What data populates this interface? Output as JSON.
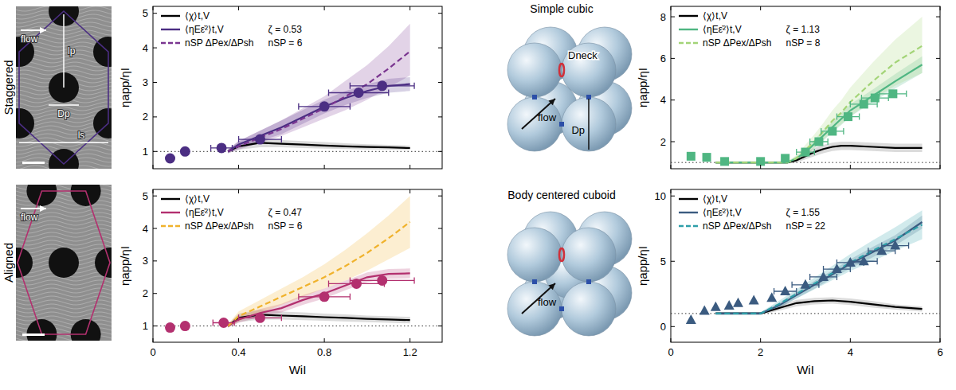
{
  "images": [
    {
      "title": "Staggered",
      "labels": [
        "flow",
        "lp",
        "Dp",
        "ls"
      ]
    },
    {
      "title": "Aligned",
      "labels": [
        "flow"
      ]
    },
    {
      "title": "Simple cubic",
      "labels": [
        "Dneck",
        "flow",
        "Dp"
      ]
    },
    {
      "title": "Body centered cuboid",
      "labels": [
        "flow"
      ]
    }
  ],
  "chart_data": [
    {
      "type": "line",
      "ylabel": "ηapp/ηI",
      "xlim": [
        0,
        1.35
      ],
      "ylim": [
        0.5,
        5.2
      ],
      "xticks": [
        0,
        0.4,
        0.8,
        1.2
      ],
      "yticks": [
        1,
        2,
        3,
        4,
        5
      ],
      "tick_labels": "y",
      "legend": "upper left",
      "hline": 1,
      "annotations": [
        "ζ = 0.53",
        "nSP = 6"
      ],
      "series": [
        {
          "name": "⟨χ⟩t,V",
          "type": "line",
          "color": "#000000",
          "line_style": "solid",
          "x": [
            0.35,
            0.4,
            0.5,
            0.6,
            0.7,
            0.8,
            0.9,
            1.0,
            1.1,
            1.2
          ],
          "values": [
            1.0,
            1.15,
            1.25,
            1.22,
            1.2,
            1.17,
            1.15,
            1.13,
            1.12,
            1.1
          ],
          "lower": [
            0.95,
            1.05,
            1.12,
            1.12,
            1.1,
            1.08,
            1.07,
            1.06,
            1.05,
            1.04
          ],
          "upper": [
            1.05,
            1.25,
            1.38,
            1.33,
            1.3,
            1.27,
            1.24,
            1.21,
            1.19,
            1.17
          ]
        },
        {
          "name": "⟨ηEε̇²⟩t,V",
          "type": "line",
          "color": "#4b2e83",
          "line_style": "solid",
          "x": [
            0.35,
            0.4,
            0.5,
            0.6,
            0.7,
            0.8,
            0.9,
            1.0,
            1.1,
            1.2
          ],
          "values": [
            1.0,
            1.2,
            1.45,
            1.7,
            2.0,
            2.3,
            2.55,
            2.75,
            2.9,
            2.95
          ],
          "lower": [
            0.95,
            1.1,
            1.3,
            1.5,
            1.8,
            2.1,
            2.35,
            2.55,
            2.7,
            2.75
          ],
          "upper": [
            1.05,
            1.3,
            1.6,
            1.9,
            2.2,
            2.5,
            2.75,
            2.95,
            3.1,
            3.15
          ]
        },
        {
          "name": "nSP ΔPex/ΔPsh",
          "type": "line",
          "color": "#7a3590",
          "line_style": "dashed",
          "x": [
            0.35,
            0.4,
            0.5,
            0.6,
            0.7,
            0.8,
            0.9,
            1.0,
            1.1,
            1.2
          ],
          "values": [
            1.0,
            1.15,
            1.4,
            1.65,
            1.95,
            2.25,
            2.6,
            2.95,
            3.4,
            3.9
          ],
          "lower": [
            0.95,
            1.05,
            1.25,
            1.45,
            1.7,
            1.95,
            2.2,
            2.5,
            2.85,
            3.2
          ],
          "upper": [
            1.05,
            1.3,
            1.6,
            1.9,
            2.25,
            2.6,
            3.05,
            3.5,
            4.05,
            4.7
          ]
        },
        {
          "type": "scatter",
          "marker": "circle",
          "color": "#4b2e83",
          "x": [
            0.08,
            0.15,
            0.32,
            0.5,
            0.8,
            0.96,
            1.07
          ],
          "values": [
            0.8,
            1.0,
            1.1,
            1.35,
            2.3,
            2.7,
            2.9
          ],
          "x_err": [
            0,
            0,
            0.05,
            0.1,
            0.12,
            0.14,
            0.15
          ]
        }
      ]
    },
    {
      "type": "line",
      "ylabel": "ηapp/ηI",
      "xlabel": "WiI",
      "xlim": [
        0,
        1.35
      ],
      "ylim": [
        0.5,
        5.2
      ],
      "xticks": [
        0,
        0.4,
        0.8,
        1.2
      ],
      "yticks": [
        1,
        2,
        3,
        4,
        5
      ],
      "tick_labels": true,
      "legend": "upper left",
      "hline": 1,
      "annotations": [
        "ζ = 0.47",
        "nSP = 6"
      ],
      "series": [
        {
          "name": "⟨χ⟩t,V",
          "type": "line",
          "color": "#000000",
          "line_style": "solid",
          "x": [
            0.35,
            0.4,
            0.5,
            0.6,
            0.7,
            0.8,
            0.9,
            1.0,
            1.1,
            1.2
          ],
          "values": [
            1.0,
            1.25,
            1.35,
            1.32,
            1.3,
            1.27,
            1.25,
            1.22,
            1.2,
            1.18
          ],
          "lower": [
            0.95,
            1.12,
            1.2,
            1.2,
            1.18,
            1.16,
            1.14,
            1.12,
            1.1,
            1.08
          ],
          "upper": [
            1.05,
            1.38,
            1.5,
            1.44,
            1.42,
            1.38,
            1.36,
            1.32,
            1.3,
            1.28
          ]
        },
        {
          "name": "⟨ηEε̇²⟩t,V",
          "type": "line",
          "color": "#b3306f",
          "line_style": "solid",
          "x": [
            0.35,
            0.4,
            0.5,
            0.6,
            0.7,
            0.8,
            0.9,
            1.0,
            1.1,
            1.2
          ],
          "values": [
            1.0,
            1.2,
            1.4,
            1.55,
            1.8,
            2.0,
            2.25,
            2.5,
            2.6,
            2.62
          ],
          "lower": [
            0.95,
            1.1,
            1.28,
            1.42,
            1.65,
            1.85,
            2.1,
            2.35,
            2.45,
            2.47
          ],
          "upper": [
            1.05,
            1.3,
            1.52,
            1.68,
            1.95,
            2.15,
            2.4,
            2.65,
            2.75,
            2.77
          ]
        },
        {
          "name": "nSP ΔPex/ΔPsh",
          "type": "line",
          "color": "#f0b22c",
          "line_style": "dashed",
          "x": [
            0.35,
            0.4,
            0.5,
            0.6,
            0.7,
            0.8,
            0.9,
            1.0,
            1.1,
            1.2
          ],
          "values": [
            1.0,
            1.3,
            1.6,
            1.9,
            2.2,
            2.5,
            2.85,
            3.25,
            3.7,
            4.2
          ],
          "lower": [
            0.95,
            1.15,
            1.4,
            1.65,
            1.9,
            2.15,
            2.4,
            2.7,
            3.05,
            3.4
          ],
          "upper": [
            1.05,
            1.45,
            1.8,
            2.15,
            2.5,
            2.9,
            3.35,
            3.85,
            4.4,
            5.0
          ]
        },
        {
          "type": "scatter",
          "marker": "circle",
          "color": "#b3306f",
          "x": [
            0.08,
            0.15,
            0.33,
            0.5,
            0.8,
            0.95,
            1.07
          ],
          "values": [
            0.95,
            1.0,
            1.1,
            1.25,
            1.9,
            2.3,
            2.4
          ],
          "x_err": [
            0,
            0,
            0.05,
            0.1,
            0.12,
            0.13,
            0.15
          ]
        }
      ]
    },
    {
      "type": "line",
      "ylabel": "ηapp/ηI",
      "xlim": [
        0,
        6
      ],
      "ylim": [
        0.7,
        8.5
      ],
      "xticks": [
        0,
        2,
        4,
        6
      ],
      "yticks": [
        2,
        4,
        6,
        8
      ],
      "tick_labels": "y",
      "legend": "upper left",
      "hline": 1,
      "annotations": [
        "ζ = 1.13",
        "nSP = 8"
      ],
      "series": [
        {
          "name": "⟨χ⟩t,V",
          "type": "line",
          "color": "#000000",
          "line_style": "solid",
          "x": [
            1.0,
            2.0,
            2.6,
            2.8,
            3.0,
            3.2,
            3.4,
            3.6,
            3.8,
            4.0,
            4.5,
            5.0,
            5.6
          ],
          "values": [
            1.0,
            1.0,
            1.0,
            1.1,
            1.3,
            1.5,
            1.65,
            1.75,
            1.8,
            1.8,
            1.75,
            1.7,
            1.7
          ],
          "lower": [
            0.95,
            0.95,
            0.95,
            1.0,
            1.15,
            1.3,
            1.45,
            1.55,
            1.6,
            1.6,
            1.55,
            1.5,
            1.5
          ],
          "upper": [
            1.05,
            1.05,
            1.05,
            1.2,
            1.45,
            1.7,
            1.85,
            1.95,
            2.0,
            2.0,
            1.95,
            1.9,
            1.9
          ]
        },
        {
          "name": "⟨ηEε̇²⟩t,V",
          "type": "line",
          "color": "#4fb682",
          "line_style": "solid",
          "x": [
            1.0,
            2.0,
            2.6,
            2.8,
            3.0,
            3.2,
            3.4,
            3.6,
            3.8,
            4.0,
            4.5,
            5.0,
            5.6
          ],
          "values": [
            1.0,
            1.0,
            1.0,
            1.2,
            1.5,
            1.9,
            2.3,
            2.7,
            3.1,
            3.5,
            4.2,
            4.9,
            5.7
          ],
          "lower": [
            0.95,
            0.95,
            0.95,
            1.1,
            1.35,
            1.7,
            2.05,
            2.45,
            2.8,
            3.2,
            3.9,
            4.55,
            5.3
          ],
          "upper": [
            1.05,
            1.05,
            1.05,
            1.3,
            1.65,
            2.1,
            2.55,
            2.95,
            3.4,
            3.8,
            4.5,
            5.25,
            6.1
          ]
        },
        {
          "name": "nSP ΔPex/ΔPsh",
          "type": "line",
          "color": "#a3d477",
          "line_style": "dashed",
          "x": [
            1.0,
            2.0,
            2.6,
            2.8,
            3.0,
            3.2,
            3.4,
            3.6,
            3.8,
            4.0,
            4.5,
            5.0,
            5.6
          ],
          "values": [
            1.0,
            1.0,
            1.0,
            1.2,
            1.6,
            2.0,
            2.5,
            3.0,
            3.4,
            3.9,
            4.9,
            5.8,
            6.6
          ],
          "lower": [
            0.95,
            0.95,
            0.95,
            1.05,
            1.35,
            1.7,
            2.1,
            2.5,
            2.85,
            3.2,
            4.0,
            4.7,
            5.3
          ],
          "upper": [
            1.05,
            1.05,
            1.05,
            1.35,
            1.85,
            2.35,
            2.9,
            3.5,
            4.0,
            4.6,
            5.8,
            6.9,
            8.0
          ]
        },
        {
          "type": "scatter",
          "marker": "square",
          "color": "#4fb682",
          "x": [
            0.45,
            0.8,
            1.2,
            2.0,
            2.55,
            3.0,
            3.3,
            3.6,
            3.95,
            4.3,
            4.55,
            4.95
          ],
          "values": [
            1.3,
            1.25,
            1.05,
            1.05,
            1.2,
            1.5,
            2.0,
            2.5,
            3.2,
            3.8,
            4.1,
            4.3
          ],
          "x_err": [
            0,
            0,
            0,
            0,
            0,
            0.2,
            0.2,
            0.25,
            0.25,
            0.3,
            0.3,
            0.3
          ]
        }
      ]
    },
    {
      "type": "line",
      "ylabel": "ηapp/ηI",
      "xlabel": "WiI",
      "xlim": [
        0,
        6
      ],
      "ylim": [
        -1.2,
        10.5
      ],
      "xticks": [
        0,
        2,
        4,
        6
      ],
      "yticks": [
        0,
        5,
        10
      ],
      "tick_labels": true,
      "legend": "upper left",
      "hline": 1,
      "annotations": [
        "ζ = 1.55",
        "nSP = 22"
      ],
      "series": [
        {
          "name": "⟨χ⟩t,V",
          "type": "line",
          "color": "#000000",
          "line_style": "solid",
          "x": [
            1.0,
            2.0,
            2.4,
            2.8,
            3.2,
            3.6,
            4.0,
            4.5,
            5.0,
            5.6
          ],
          "values": [
            1.0,
            1.0,
            1.4,
            1.8,
            1.95,
            2.0,
            1.9,
            1.7,
            1.5,
            1.35
          ],
          "lower": [
            0.9,
            0.9,
            1.2,
            1.55,
            1.7,
            1.75,
            1.65,
            1.45,
            1.3,
            1.15
          ],
          "upper": [
            1.1,
            1.1,
            1.6,
            2.05,
            2.2,
            2.25,
            2.15,
            1.95,
            1.7,
            1.55
          ]
        },
        {
          "name": "⟨ηEε̇²⟩t,V",
          "type": "line",
          "color": "#3b5b80",
          "line_style": "solid",
          "x": [
            1.0,
            2.0,
            2.4,
            2.8,
            3.2,
            3.6,
            4.0,
            4.5,
            5.0,
            5.6
          ],
          "values": [
            1.0,
            1.0,
            1.6,
            2.4,
            3.2,
            4.0,
            4.8,
            5.7,
            6.6,
            8.0
          ],
          "lower": [
            0.9,
            0.9,
            1.4,
            2.15,
            2.9,
            3.7,
            4.45,
            5.3,
            6.2,
            7.5
          ],
          "upper": [
            1.1,
            1.1,
            1.8,
            2.65,
            3.5,
            4.3,
            5.15,
            6.1,
            7.0,
            8.5
          ]
        },
        {
          "name": "nSP ΔPex/ΔPsh",
          "type": "line",
          "color": "#2e9fa9",
          "line_style": "dashed",
          "x": [
            1.0,
            2.0,
            2.4,
            2.8,
            3.2,
            3.6,
            4.0,
            4.5,
            5.0,
            5.6
          ],
          "values": [
            1.0,
            1.0,
            1.7,
            2.5,
            3.3,
            4.1,
            4.9,
            5.8,
            6.7,
            7.8
          ],
          "lower": [
            0.9,
            0.9,
            1.45,
            2.15,
            2.85,
            3.55,
            4.25,
            5.0,
            5.8,
            6.7
          ],
          "upper": [
            1.1,
            1.1,
            1.95,
            2.85,
            3.75,
            4.65,
            5.55,
            6.6,
            7.6,
            8.9
          ]
        },
        {
          "type": "scatter",
          "marker": "triangle",
          "color": "#3b5b80",
          "x": [
            0.45,
            0.75,
            1.0,
            1.3,
            1.5,
            1.85,
            2.25,
            2.55,
            3.0,
            3.4,
            3.7,
            4.0,
            4.3,
            4.7,
            5.0
          ],
          "values": [
            0.5,
            1.2,
            1.5,
            1.6,
            1.8,
            2.0,
            2.2,
            2.7,
            3.2,
            3.8,
            4.4,
            4.9,
            5.0,
            5.8,
            6.2
          ],
          "x_err": [
            0,
            0,
            0,
            0,
            0,
            0,
            0,
            0.25,
            0.3,
            0.3,
            0.3,
            0.3,
            0.3,
            0.3,
            0.3
          ]
        }
      ]
    }
  ]
}
